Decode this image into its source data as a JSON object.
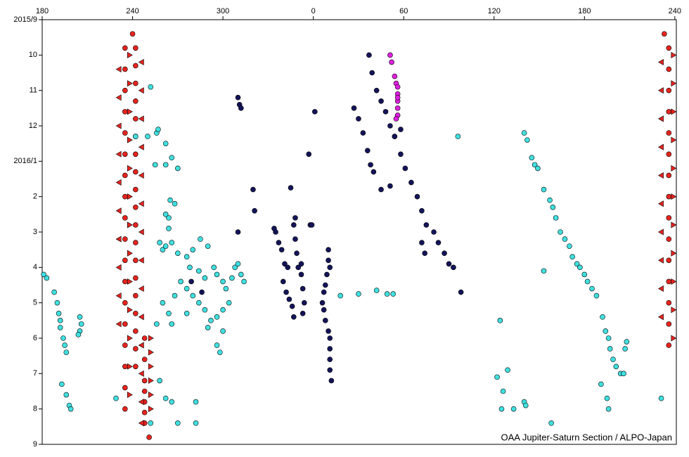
{
  "chart_data": {
    "type": "scatter",
    "annotation": "OAA Jupiter-Saturn Section / ALPO-Japan",
    "xlim": [
      180,
      601
    ],
    "xticks": [
      180,
      240,
      300,
      {
        "value": 360,
        "label": "0"
      },
      {
        "value": 420,
        "label": "60"
      },
      {
        "value": 480,
        "label": "120"
      },
      {
        "value": 540,
        "label": "180"
      },
      {
        "value": 600,
        "label": "240"
      }
    ],
    "ylim": [
      0,
      12
    ],
    "y_inverted": true,
    "yticks": [
      {
        "value": 0,
        "label": "2015/9"
      },
      {
        "value": 1,
        "label": "10"
      },
      {
        "value": 2,
        "label": "11"
      },
      {
        "value": 3,
        "label": "12"
      },
      {
        "value": 4,
        "label": "2016/1"
      },
      {
        "value": 5,
        "label": "2"
      },
      {
        "value": 6,
        "label": "3"
      },
      {
        "value": 7,
        "label": "4"
      },
      {
        "value": 8,
        "label": "5"
      },
      {
        "value": 9,
        "label": "6"
      },
      {
        "value": 10,
        "label": "7"
      },
      {
        "value": 11,
        "label": "8"
      },
      {
        "value": 12,
        "label": "9"
      }
    ],
    "grid": false,
    "series": [
      {
        "color": "#e8231e",
        "marker": "circle",
        "x": [
          235,
          235,
          235,
          235,
          235,
          235,
          235,
          235,
          235,
          235,
          235,
          235,
          235,
          235,
          235,
          235,
          235,
          235,
          242,
          242,
          242,
          242,
          242,
          242,
          242,
          242,
          242,
          242,
          242,
          242,
          242,
          242,
          242,
          242,
          242,
          242,
          242,
          248,
          248,
          248,
          248,
          248,
          248,
          248,
          240,
          251,
          596,
          596,
          596,
          596,
          596,
          596,
          596,
          596,
          596,
          596,
          596,
          596,
          596,
          596,
          596,
          593
        ],
        "values": [
          0.8,
          1.4,
          2.0,
          2.6,
          3.2,
          3.8,
          4.4,
          5.0,
          5.6,
          6.2,
          6.8,
          7.4,
          8.0,
          8.6,
          9.2,
          9.8,
          10.4,
          11.0,
          0.8,
          1.3,
          1.8,
          2.3,
          2.8,
          3.3,
          3.8,
          4.3,
          4.8,
          5.3,
          5.8,
          6.3,
          6.8,
          7.3,
          7.8,
          8.3,
          8.8,
          9.3,
          9.8,
          9.0,
          9.6,
          10.2,
          10.5,
          10.8,
          11.1,
          11.4,
          0.4,
          11.8,
          0.8,
          1.4,
          2.0,
          2.6,
          3.2,
          3.8,
          4.4,
          5.0,
          5.6,
          6.2,
          6.8,
          7.4,
          8.0,
          8.6,
          9.2,
          0.4
        ]
      },
      {
        "color": "#e8231e",
        "marker": "triangle-left",
        "x": [
          231,
          231,
          231,
          231,
          231,
          231,
          231,
          231,
          231,
          231,
          246,
          246,
          246,
          246,
          246,
          246,
          246,
          246,
          246,
          246,
          246,
          246,
          246,
          246,
          591,
          591,
          591,
          591,
          591,
          591,
          591,
          591,
          591,
          591
        ],
        "values": [
          1.4,
          2.2,
          3.0,
          3.8,
          4.6,
          5.4,
          6.2,
          7.0,
          7.8,
          8.6,
          1.2,
          2.0,
          2.8,
          3.6,
          4.4,
          5.2,
          6.0,
          6.8,
          7.6,
          8.4,
          9.2,
          10.0,
          10.8,
          11.4,
          1.2,
          2.0,
          2.8,
          3.6,
          4.4,
          5.2,
          6.0,
          6.8,
          7.6,
          8.4
        ]
      },
      {
        "color": "#e8231e",
        "marker": "triangle-right",
        "x": [
          238,
          238,
          238,
          238,
          238,
          238,
          238,
          238,
          238,
          238,
          238,
          238,
          238,
          252,
          252,
          252,
          252,
          252,
          252,
          599,
          599,
          599,
          599,
          599,
          599,
          599,
          599,
          599,
          599,
          599
        ],
        "values": [
          1.0,
          1.8,
          2.6,
          3.4,
          4.2,
          5.0,
          5.8,
          6.6,
          7.4,
          8.2,
          9.0,
          9.8,
          10.6,
          9.0,
          9.4,
          9.8,
          10.2,
          10.6,
          11.0,
          1.0,
          1.8,
          2.6,
          3.4,
          4.2,
          5.0,
          5.8,
          6.6,
          7.4,
          8.2,
          9.0
        ]
      },
      {
        "color": "#40e0e0",
        "marker": "circle",
        "x": [
          181,
          183,
          188,
          190,
          191,
          192,
          192,
          194,
          195,
          196,
          205,
          206,
          205,
          204,
          193,
          196,
          198,
          199,
          229,
          252,
          242,
          250,
          256,
          257,
          262,
          266,
          270,
          255,
          262,
          265,
          264,
          262,
          268,
          264,
          258,
          260,
          262,
          266,
          270,
          276,
          280,
          285,
          290,
          278,
          284,
          288,
          294,
          296,
          300,
          302,
          306,
          308,
          310,
          312,
          314,
          304,
          300,
          296,
          292,
          288,
          284,
          280,
          276,
          272,
          268,
          264,
          260,
          256,
          266,
          290,
          300,
          276,
          296,
          298,
          258,
          262,
          266,
          282,
          252,
          270,
          282,
          378,
          390,
          402,
          409,
          413,
          456,
          500,
          502,
          505,
          507,
          509,
          513,
          517,
          519,
          521,
          524,
          527,
          530,
          532,
          535,
          537,
          540,
          542,
          545,
          548,
          552,
          554,
          556,
          557,
          559,
          561,
          564,
          567,
          568,
          566,
          551,
          555,
          556,
          482,
          486,
          489,
          493,
          500,
          501,
          485,
          518,
          591,
          484,
          513
        ],
        "values": [
          7.2,
          7.3,
          7.7,
          8.0,
          8.3,
          8.5,
          8.7,
          9.0,
          9.2,
          9.4,
          8.4,
          8.6,
          8.8,
          8.9,
          10.3,
          10.6,
          10.9,
          11.0,
          10.7,
          1.9,
          3.3,
          3.3,
          3.2,
          3.1,
          3.5,
          3.9,
          4.2,
          4.1,
          4.1,
          5.1,
          5.6,
          5.5,
          5.2,
          5.9,
          6.3,
          6.5,
          6.4,
          6.3,
          6.6,
          6.7,
          6.5,
          6.2,
          6.4,
          7.0,
          7.1,
          7.3,
          7.0,
          7.2,
          7.4,
          7.6,
          7.3,
          7.0,
          6.9,
          7.2,
          7.4,
          8.0,
          8.2,
          8.4,
          8.5,
          8.2,
          8.0,
          7.8,
          7.6,
          7.4,
          7.8,
          8.3,
          8.0,
          8.6,
          8.6,
          8.7,
          8.8,
          8.3,
          9.2,
          9.4,
          10.2,
          10.7,
          10.8,
          10.8,
          11.4,
          11.4,
          11.4,
          7.8,
          7.75,
          7.65,
          7.75,
          7.75,
          3.3,
          3.2,
          3.4,
          3.9,
          4.1,
          4.2,
          4.8,
          5.1,
          5.3,
          5.6,
          6.0,
          6.2,
          6.4,
          6.7,
          6.9,
          7.0,
          7.2,
          7.4,
          7.6,
          7.8,
          8.4,
          8.8,
          9.0,
          9.3,
          9.6,
          9.8,
          10.0,
          9.3,
          9.1,
          10.0,
          10.3,
          10.7,
          11.0,
          10.1,
          10.5,
          9.9,
          11.0,
          10.8,
          10.9,
          11.0,
          11.4,
          10.7,
          8.5,
          7.1
        ]
      },
      {
        "color": "#14145a",
        "marker": "circle",
        "x": [
          310,
          311,
          312,
          320,
          321,
          310,
          361,
          357,
          358,
          345,
          334,
          335,
          337,
          339,
          341,
          343,
          340,
          342,
          344,
          346,
          347,
          348,
          347,
          348,
          349,
          350,
          352,
          353,
          354,
          353,
          370,
          370,
          369,
          368,
          367,
          366,
          367,
          368,
          370,
          371,
          371,
          371,
          371,
          372,
          371,
          397,
          399,
          402,
          405,
          408,
          411,
          414,
          418,
          421,
          425,
          429,
          432,
          435,
          440,
          443,
          447,
          450,
          453,
          387,
          390,
          393,
          396,
          398,
          400,
          405,
          418,
          414,
          432,
          434,
          458,
          411,
          359,
          352,
          279,
          286
        ],
        "values": [
          2.2,
          2.4,
          2.5,
          4.8,
          5.4,
          6.0,
          2.6,
          3.8,
          5.8,
          4.75,
          5.9,
          6.0,
          6.3,
          6.5,
          6.9,
          7.0,
          7.4,
          7.7,
          7.9,
          8.1,
          8.4,
          5.6,
          5.8,
          6.2,
          6.6,
          7.0,
          7.2,
          7.6,
          8.0,
          8.3,
          6.5,
          6.8,
          7.2,
          7.5,
          7.7,
          8.0,
          8.2,
          8.5,
          8.8,
          9.0,
          9.3,
          9.6,
          9.9,
          10.2,
          7.0,
          1.0,
          1.5,
          2.0,
          2.3,
          2.6,
          3.0,
          3.3,
          3.8,
          4.2,
          4.6,
          5.0,
          5.4,
          5.8,
          6.0,
          6.3,
          6.6,
          6.9,
          7.0,
          2.5,
          2.8,
          3.2,
          3.7,
          4.1,
          4.3,
          4.8,
          3.1,
          3.3,
          6.3,
          6.6,
          7.7,
          4.7,
          5.8,
          6.9,
          7.4,
          7.7
        ]
      },
      {
        "color": "#e020e0",
        "marker": "circle",
        "x": [
          411,
          412,
          414,
          415,
          416,
          416,
          416,
          416,
          416,
          415,
          416
        ],
        "values": [
          1.0,
          1.2,
          1.6,
          1.8,
          1.9,
          2.1,
          2.3,
          2.5,
          2.7,
          2.8,
          2.2
        ]
      }
    ]
  }
}
